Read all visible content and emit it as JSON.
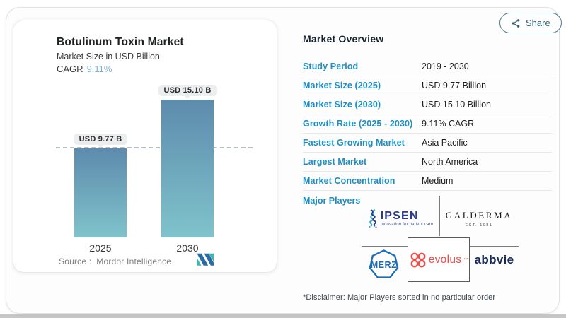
{
  "colors": {
    "label_blue": "#1e8fc2",
    "heading_dark": "#15222c",
    "cagr_value_blue": "#7fb2d0",
    "share_teal": "#30606f",
    "bar_gradient_top": "#5d8bad",
    "bar_gradient_bottom": "#7fc3cb",
    "ipsen_navy": "#2a3b8f",
    "merz_blue": "#1e6eb5",
    "evolus_red": "#e94c4a",
    "abbvie_navy": "#14275a",
    "mordor_blue": "#2c6aa4",
    "mordor_teal": "#41b6b1"
  },
  "icons": {
    "share": "share-nodes-icon",
    "mordor_logo": "mordor-intelligence-m-mark",
    "ipsen_icon": "dna-helix",
    "merz_icon": "heptagon-outline",
    "evolus_icon": "four-petal-flower"
  },
  "share": {
    "label": "Share"
  },
  "left_panel": {
    "title": "Botulinum Toxin Market",
    "subtitle": "Market Size in USD Billion",
    "cagr_label": "CAGR",
    "cagr_value": "9.11%",
    "source_label": "Source :",
    "source_value": "Mordor Intelligence"
  },
  "chart_data": {
    "type": "bar",
    "title": "Botulinum Toxin Market",
    "subtitle": "Market Size in USD Billion",
    "unit": "USD Billion",
    "categories": [
      "2025",
      "2030"
    ],
    "values": [
      9.77,
      15.1
    ],
    "bar_labels": [
      "USD 9.77 B",
      "USD 15.10 B"
    ],
    "cagr": "9.11%",
    "reference_line_value": 9.77,
    "bar_gradient": [
      "#5d8bad",
      "#7fc3cb"
    ],
    "source": "Mordor Intelligence",
    "grid": "off",
    "legend": "none"
  },
  "overview": {
    "heading": "Market Overview",
    "rows": [
      {
        "label": "Study Period",
        "value": "2019 - 2030"
      },
      {
        "label": "Market Size (2025)",
        "value": "USD 9.77 Billion"
      },
      {
        "label": "Market Size (2030)",
        "value": "USD 15.10 Billion"
      },
      {
        "label": "Growth Rate (2025 - 2030)",
        "value": "9.11% CAGR"
      },
      {
        "label": "Fastest Growing Market",
        "value": "Asia Pacific"
      },
      {
        "label": "Largest Market",
        "value": "North America"
      },
      {
        "label": "Market Concentration",
        "value": "Medium"
      }
    ],
    "major_players_label": "Major Players",
    "disclaimer": "*Disclaimer: Major Players sorted in no particular order"
  },
  "players": {
    "ipsen": {
      "name": "IPSEN",
      "tagline": "Innovation for patient care"
    },
    "galderma": {
      "name": "GALDERMA",
      "established": "EST. 1981"
    },
    "merz": {
      "name": "MERZ"
    },
    "evolus": {
      "name": "evolus",
      "trademark": "™"
    },
    "abbvie": {
      "name": "abbvie"
    }
  }
}
